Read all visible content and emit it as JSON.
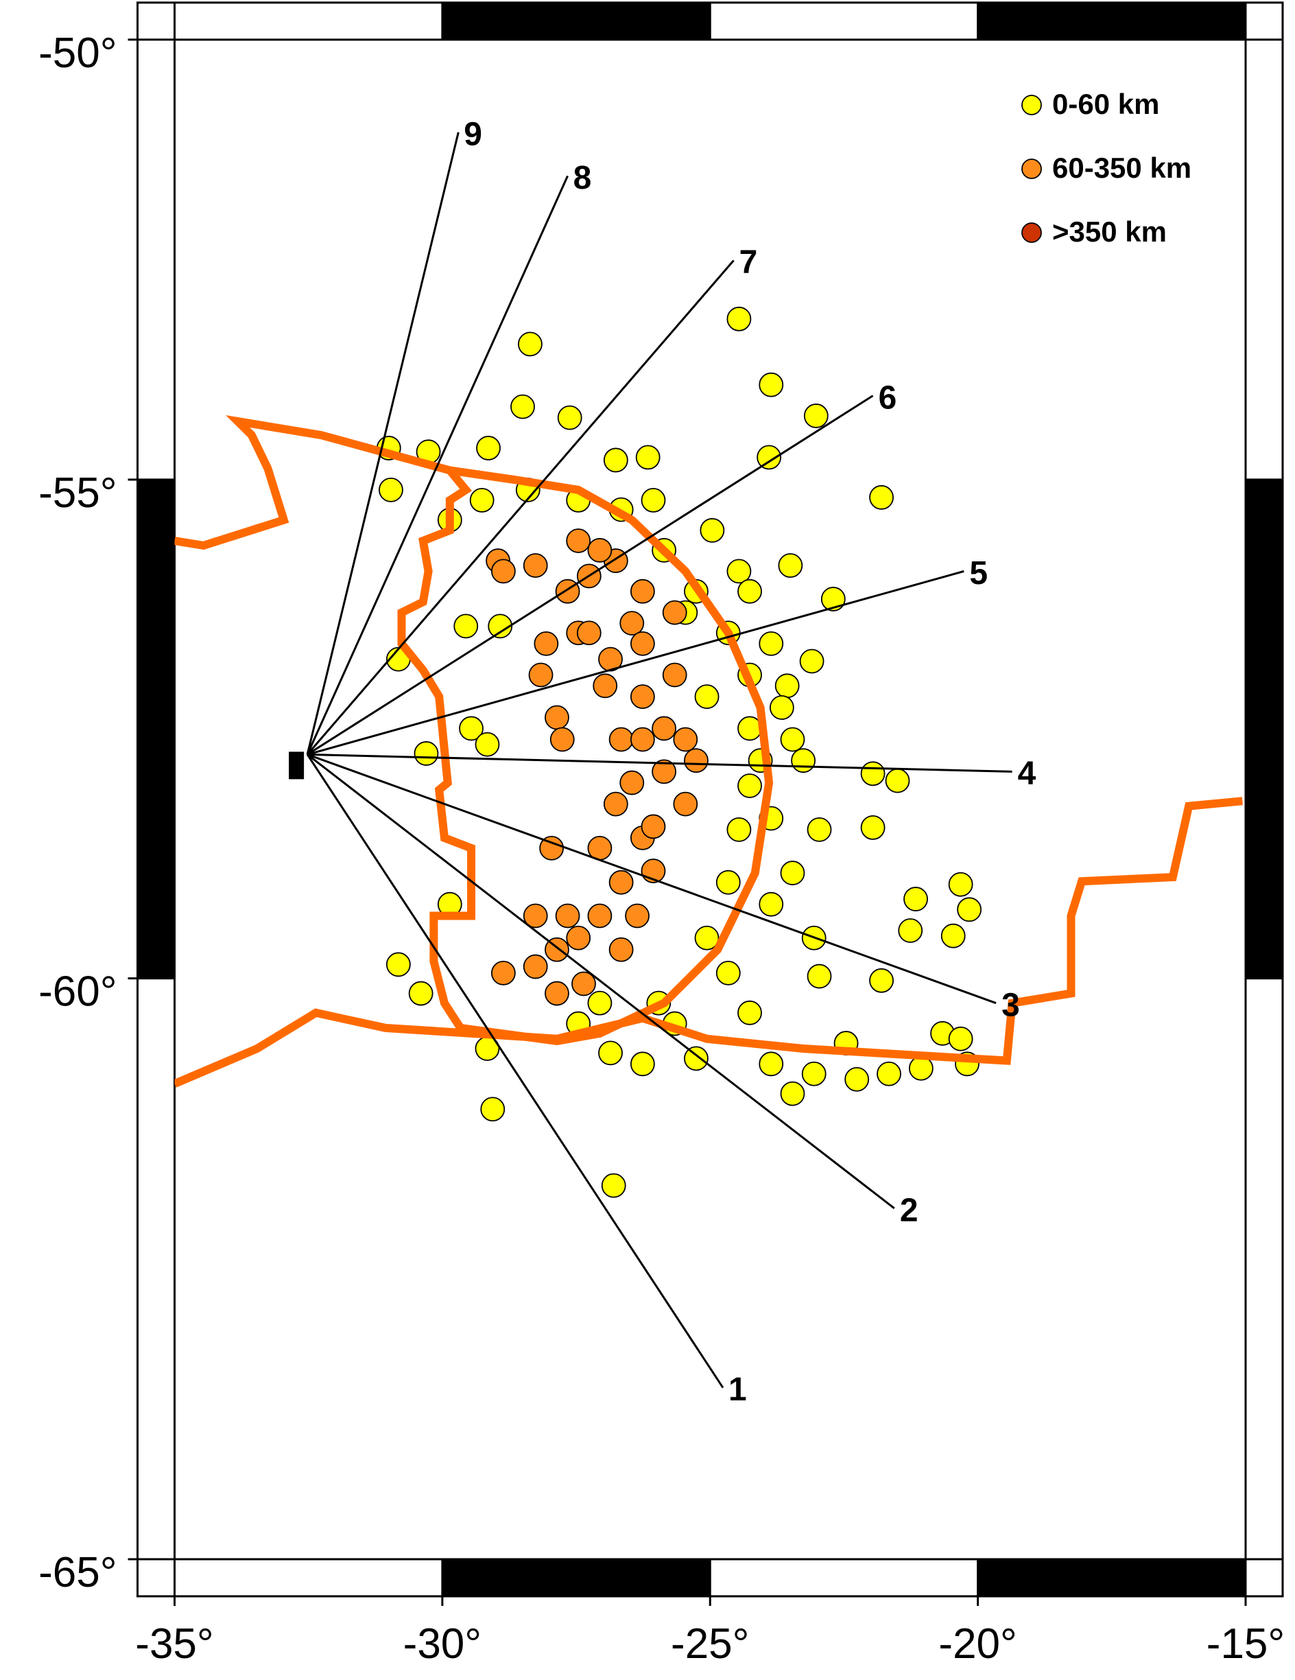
{
  "chart_data": {
    "type": "map",
    "projection": "mercator",
    "xlim": [
      -35,
      -15
    ],
    "ylim": [
      -65,
      -50
    ],
    "xticks": [
      {
        "value": -35,
        "label": "-35°"
      },
      {
        "value": -30,
        "label": "-30°"
      },
      {
        "value": -25,
        "label": "-25°"
      },
      {
        "value": -20,
        "label": "-20°"
      },
      {
        "value": -15,
        "label": "-15°"
      }
    ],
    "yticks": [
      {
        "value": -65,
        "label": "-65°"
      },
      {
        "value": -60,
        "label": "-60°"
      },
      {
        "value": -55,
        "label": "-55°"
      },
      {
        "value": -50,
        "label": "-50°"
      }
    ],
    "legend": "top-right",
    "series": [
      {
        "name": "0-60 km",
        "color": "#ffff00",
        "x": [
          -24.46,
          -28.36,
          -23.86,
          -28.5,
          -27.62,
          -23.02,
          -31.0,
          -30.26,
          -29.14,
          -23.9,
          -21.8,
          -26.76,
          -26.16,
          -30.96,
          -28.4,
          -26.06,
          -24.96,
          -23.5,
          -24.46,
          -24.26,
          -22.7,
          -29.56,
          -28.92,
          -25.46,
          -23.86,
          -23.1,
          -23.56,
          -30.82,
          -29.46,
          -29.16,
          -30.3,
          -25.06,
          -24.26,
          -23.26,
          -21.96,
          -21.5,
          -24.26,
          -23.86,
          -22.96,
          -21.96,
          -23.46,
          -21.16,
          -20.32,
          -20.16,
          -21.26,
          -20.46,
          -23.06,
          -21.8,
          -22.96,
          -30.82,
          -30.4,
          -29.86,
          -29.16,
          -29.06,
          -26.8,
          -26.26,
          -25.26,
          -24.26,
          -23.86,
          -23.06,
          -22.46,
          -22.26,
          -21.66,
          -21.06,
          -20.66,
          -20.32,
          -20.2,
          -23.46,
          -26.86,
          -27.46,
          -25.96,
          -25.06,
          -24.66,
          -23.86,
          -24.46,
          -23.46,
          -24.66,
          -25.26,
          -25.86,
          -26.66,
          -27.46,
          -29.26,
          -29.86,
          -27.06,
          -25.66,
          -24.66,
          -24.26,
          -23.66,
          -24.06
        ],
        "y": [
          -53.24,
          -53.52,
          -53.97,
          -54.21,
          -54.33,
          -54.31,
          -54.66,
          -54.7,
          -54.66,
          -54.76,
          -55.19,
          -54.79,
          -54.76,
          -55.11,
          -55.11,
          -55.22,
          -55.54,
          -55.91,
          -55.97,
          -56.18,
          -56.26,
          -56.54,
          -56.54,
          -56.4,
          -56.72,
          -56.9,
          -57.15,
          -56.88,
          -57.58,
          -57.74,
          -57.83,
          -57.26,
          -57.58,
          -57.9,
          -58.03,
          -58.1,
          -58.15,
          -58.47,
          -58.58,
          -58.56,
          -59.0,
          -59.25,
          -59.11,
          -59.35,
          -59.55,
          -59.6,
          -59.62,
          -60.02,
          -59.98,
          -59.87,
          -60.14,
          -59.3,
          -60.65,
          -61.2,
          -61.88,
          -60.79,
          -60.74,
          -60.32,
          -60.79,
          -60.88,
          -60.6,
          -60.93,
          -60.88,
          -60.83,
          -60.51,
          -60.56,
          -60.79,
          -61.06,
          -60.69,
          -60.42,
          -60.23,
          -59.62,
          -59.09,
          -59.3,
          -58.58,
          -57.69,
          -56.61,
          -56.18,
          -55.75,
          -55.32,
          -55.22,
          -55.22,
          -55.43,
          -60.23,
          -60.42,
          -59.95,
          -57.04,
          -57.37,
          -57.9
        ]
      },
      {
        "name": "60-350 km",
        "color": "#ff8c1a",
        "x": [
          -28.96,
          -28.26,
          -27.66,
          -27.26,
          -27.46,
          -26.76,
          -26.26,
          -26.46,
          -27.46,
          -28.06,
          -28.16,
          -27.86,
          -27.76,
          -26.96,
          -26.26,
          -25.66,
          -25.86,
          -26.66,
          -26.46,
          -25.86,
          -25.46,
          -26.76,
          -26.26,
          -27.06,
          -26.06,
          -26.66,
          -26.36,
          -27.06,
          -27.66,
          -28.26,
          -27.86,
          -27.46,
          -28.26,
          -28.86,
          -27.86,
          -27.36,
          -27.96,
          -26.26,
          -25.66,
          -26.86,
          -26.06,
          -26.66,
          -27.26,
          -28.86,
          -27.06,
          -25.46,
          -25.26,
          -26.26
        ],
        "y": [
          -55.86,
          -55.91,
          -56.18,
          -56.02,
          -55.65,
          -55.86,
          -56.18,
          -56.51,
          -56.61,
          -56.72,
          -57.04,
          -57.47,
          -57.69,
          -57.15,
          -57.26,
          -57.04,
          -57.58,
          -57.69,
          -58.12,
          -58.01,
          -58.33,
          -58.33,
          -58.66,
          -58.76,
          -58.98,
          -59.09,
          -59.41,
          -59.41,
          -59.41,
          -59.41,
          -59.73,
          -59.62,
          -59.89,
          -59.95,
          -60.14,
          -60.05,
          -58.76,
          -56.72,
          -56.4,
          -56.88,
          -58.55,
          -59.73,
          -56.61,
          -55.97,
          -55.75,
          -57.69,
          -57.9,
          -57.69
        ]
      },
      {
        "name": ">350 km",
        "color": "#cc3300",
        "x": [],
        "y": []
      }
    ],
    "boundary_color": "#ff6a00",
    "boundaries": [
      {
        "x": [
          -35,
          -34.46,
          -32.96,
          -33.26,
          -33.56,
          -33.82,
          -32.26,
          -29.86
        ],
        "y": [
          -55.65,
          -55.7,
          -55.43,
          -54.88,
          -54.52,
          -54.37,
          -54.52,
          -54.9
        ]
      },
      {
        "x": [
          -29.86,
          -28.66,
          -27.46,
          -26.46,
          -25.46,
          -24.66,
          -24.06,
          -23.9,
          -24.16,
          -24.86,
          -25.86,
          -27.06,
          -27.86,
          -29.66,
          -29.96,
          -30.16,
          -30.16,
          -29.46,
          -29.46,
          -29.96,
          -30.06,
          -29.9,
          -30.06,
          -30.36,
          -30.76,
          -30.76,
          -30.36,
          -30.26,
          -30.36,
          -29.86,
          -29.86,
          -29.56,
          -29.86
        ],
        "y": [
          -54.9,
          -55.0,
          -55.11,
          -55.43,
          -55.97,
          -56.61,
          -57.37,
          -58.12,
          -59.0,
          -59.73,
          -60.23,
          -60.51,
          -60.58,
          -60.46,
          -60.23,
          -59.84,
          -59.41,
          -59.41,
          -58.76,
          -58.66,
          -58.19,
          -58.12,
          -57.26,
          -56.99,
          -56.72,
          -56.4,
          -56.29,
          -55.97,
          -55.65,
          -55.54,
          -55.22,
          -55.11,
          -54.9
        ]
      },
      {
        "x": [
          -35,
          -33.46,
          -32.36,
          -31.06,
          -27.86,
          -26.26,
          -25.06,
          -23.26,
          -19.46,
          -19.36,
          -18.26,
          -18.26,
          -18.06,
          -16.36,
          -16.06,
          -15.06
        ],
        "y": [
          -60.97,
          -60.65,
          -60.32,
          -60.46,
          -60.56,
          -60.37,
          -60.56,
          -60.65,
          -60.76,
          -60.23,
          -60.14,
          -59.41,
          -59.08,
          -59.04,
          -58.35,
          -58.3
        ]
      }
    ],
    "profiles": [
      {
        "label": "1",
        "x": [
          -32.52,
          -24.76
        ],
        "y": [
          -57.84,
          -63.61
        ]
      },
      {
        "label": "2",
        "x": [
          -32.52,
          -21.56
        ],
        "y": [
          -57.84,
          -62.08
        ]
      },
      {
        "label": "3",
        "x": [
          -32.52,
          -19.66
        ],
        "y": [
          -57.84,
          -60.23
        ]
      },
      {
        "label": "4",
        "x": [
          -32.52,
          -19.36
        ],
        "y": [
          -57.84,
          -58.01
        ]
      },
      {
        "label": "5",
        "x": [
          -32.52,
          -20.26
        ],
        "y": [
          -57.84,
          -55.97
        ]
      },
      {
        "label": "6",
        "x": [
          -32.52,
          -21.96
        ],
        "y": [
          -57.84,
          -54.09
        ]
      },
      {
        "label": "7",
        "x": [
          -32.52,
          -24.56
        ],
        "y": [
          -57.84,
          -52.58
        ]
      },
      {
        "label": "8",
        "x": [
          -32.52,
          -27.66
        ],
        "y": [
          -57.84,
          -51.61
        ]
      },
      {
        "label": "9",
        "x": [
          -32.52,
          -29.7
        ],
        "y": [
          -57.84,
          -51.1
        ]
      }
    ]
  }
}
